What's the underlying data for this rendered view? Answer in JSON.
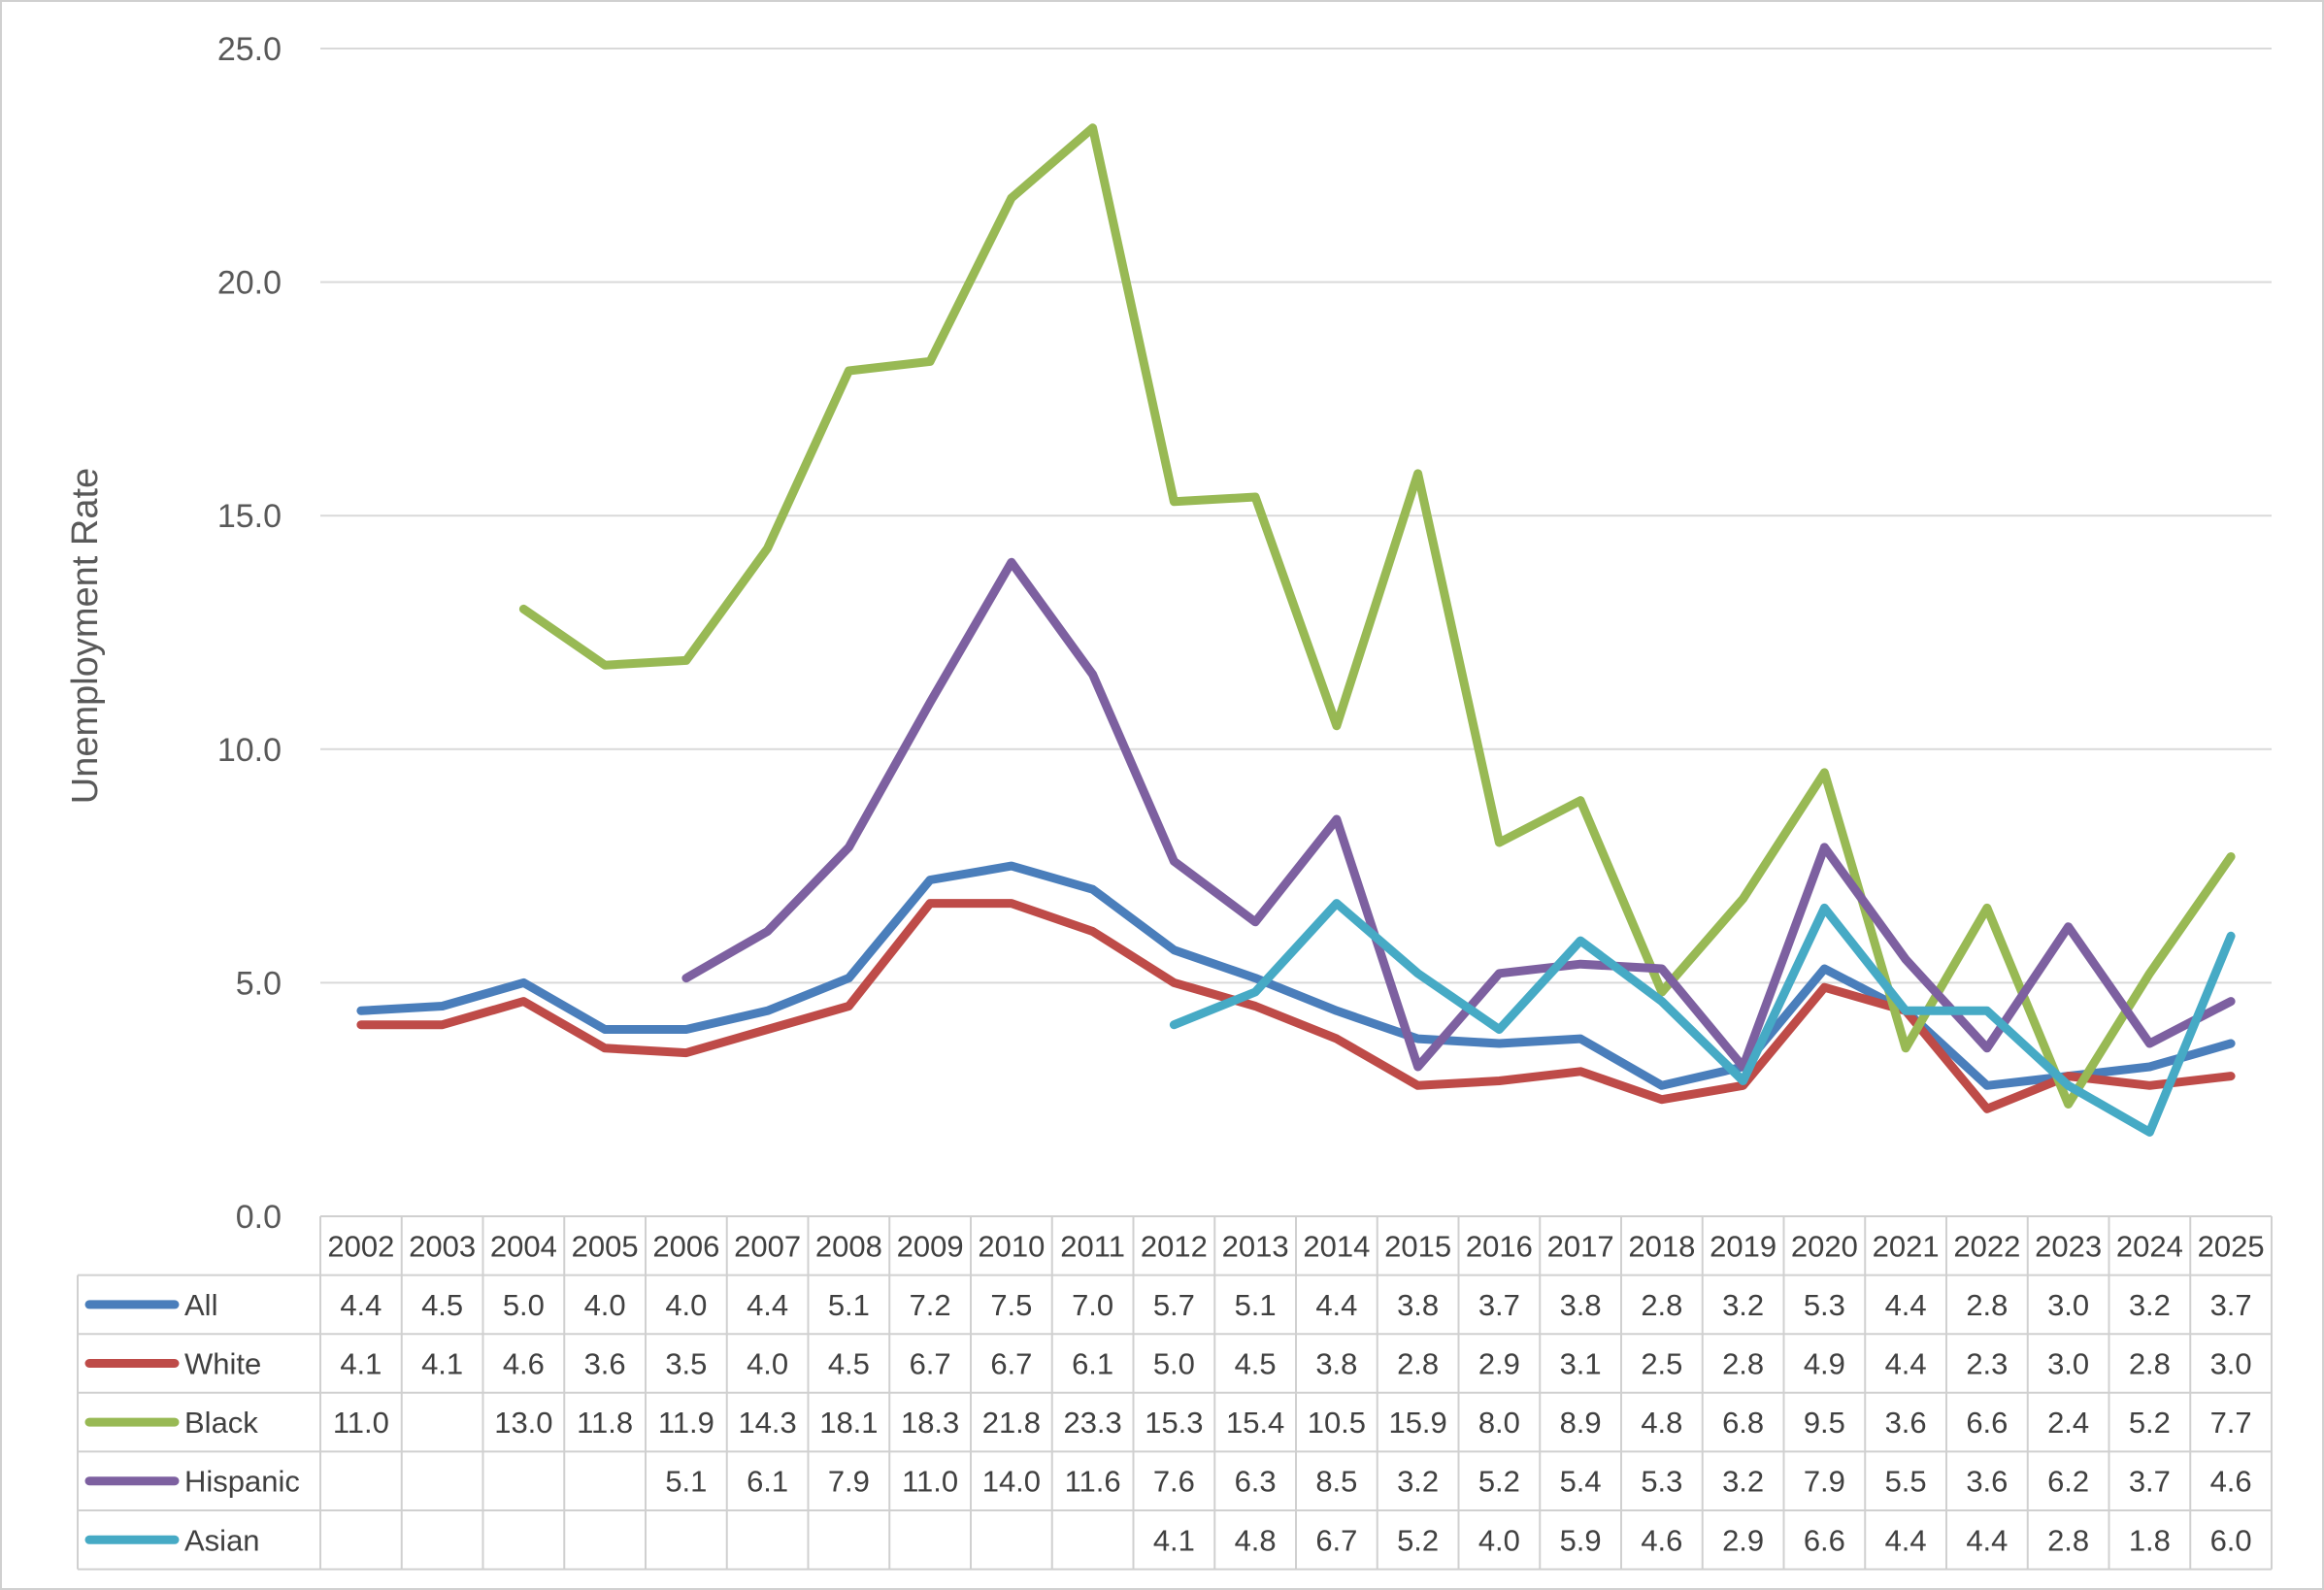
{
  "chart_data": {
    "type": "line",
    "title": "",
    "xlabel": "",
    "ylabel": "Unemployment Rate",
    "ylim": [
      0,
      25
    ],
    "yticks": [
      "0.0",
      "5.0",
      "10.0",
      "15.0",
      "20.0",
      "25.0"
    ],
    "grid": true,
    "legend_placement": "data-table-left",
    "categories": [
      "2002",
      "2003",
      "2004",
      "2005",
      "2006",
      "2007",
      "2008",
      "2009",
      "2010",
      "2011",
      "2012",
      "2013",
      "2014",
      "2015",
      "2016",
      "2017",
      "2018",
      "2019",
      "2020",
      "2021",
      "2022",
      "2023",
      "2024",
      "2025"
    ],
    "series": [
      {
        "name": "All",
        "color": "#4a7ebb",
        "values": [
          4.4,
          4.5,
          5.0,
          4.0,
          4.0,
          4.4,
          5.1,
          7.2,
          7.5,
          7.0,
          5.7,
          5.1,
          4.4,
          3.8,
          3.7,
          3.8,
          2.8,
          3.2,
          5.3,
          4.4,
          2.8,
          3.0,
          3.2,
          3.7
        ]
      },
      {
        "name": "White",
        "color": "#be4b48",
        "values": [
          4.1,
          4.1,
          4.6,
          3.6,
          3.5,
          4.0,
          4.5,
          6.7,
          6.7,
          6.1,
          5.0,
          4.5,
          3.8,
          2.8,
          2.9,
          3.1,
          2.5,
          2.8,
          4.9,
          4.4,
          2.3,
          3.0,
          2.8,
          3.0
        ]
      },
      {
        "name": "Black",
        "color": "#98b954",
        "values": [
          11.0,
          null,
          13.0,
          11.8,
          11.9,
          14.3,
          18.1,
          18.3,
          21.8,
          23.3,
          15.3,
          15.4,
          10.5,
          15.9,
          8.0,
          8.9,
          4.8,
          6.8,
          9.5,
          3.6,
          6.6,
          2.4,
          5.2,
          7.7
        ]
      },
      {
        "name": "Hispanic",
        "color": "#7d60a0",
        "values": [
          null,
          null,
          null,
          null,
          5.1,
          6.1,
          7.9,
          11.0,
          14.0,
          11.6,
          7.6,
          6.3,
          8.5,
          3.2,
          5.2,
          5.4,
          5.3,
          3.2,
          7.9,
          5.5,
          3.6,
          6.2,
          3.7,
          4.6
        ]
      },
      {
        "name": "Asian",
        "color": "#46aac5",
        "values": [
          null,
          null,
          null,
          null,
          null,
          null,
          null,
          null,
          null,
          null,
          4.1,
          4.8,
          6.7,
          5.2,
          4.0,
          5.9,
          4.6,
          2.9,
          6.6,
          4.4,
          4.4,
          2.8,
          1.8,
          6.0
        ]
      }
    ]
  }
}
